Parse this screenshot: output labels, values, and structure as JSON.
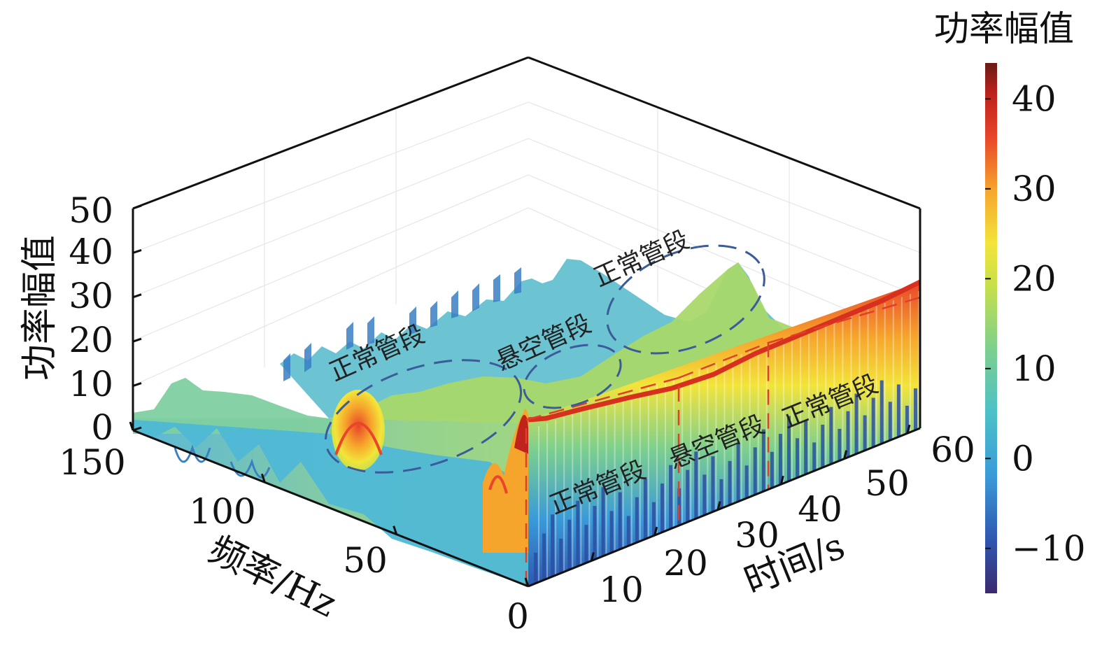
{
  "chart_data": {
    "type": "surface",
    "zlabel": "功率幅值",
    "xlabel": "频率/Hz",
    "ylabel": "时间/s",
    "zlim": [
      0,
      50
    ],
    "xlim": [
      0,
      150
    ],
    "ylim": [
      0,
      60
    ],
    "z_ticks": [
      "0",
      "10",
      "20",
      "30",
      "40",
      "50"
    ],
    "x_ticks": [
      "0",
      "50",
      "100",
      "150"
    ],
    "y_ticks": [
      "10",
      "20",
      "30",
      "40",
      "50",
      "60"
    ],
    "colorbar": {
      "title": "功率幅值",
      "range": [
        -15,
        44
      ],
      "ticks": [
        "−10",
        "0",
        "10",
        "20",
        "30",
        "40"
      ],
      "tick_values": [
        -10,
        0,
        10,
        20,
        30,
        40
      ]
    },
    "annotations": {
      "normal_1": "正常管段",
      "suspended": "悬空管段",
      "normal_2": "正常管段",
      "front_normal_1": "正常管段",
      "front_suspended": "悬空管段",
      "front_normal_2": "正常管段"
    },
    "peaks": [
      {
        "freq": 5,
        "time": 0,
        "amplitude": 44
      },
      {
        "freq": 120,
        "time": 5,
        "amplitude": 30
      },
      {
        "freq": 40,
        "time": 45,
        "amplitude": 25
      },
      {
        "freq": 70,
        "time": 30,
        "amplitude": 18
      }
    ]
  }
}
